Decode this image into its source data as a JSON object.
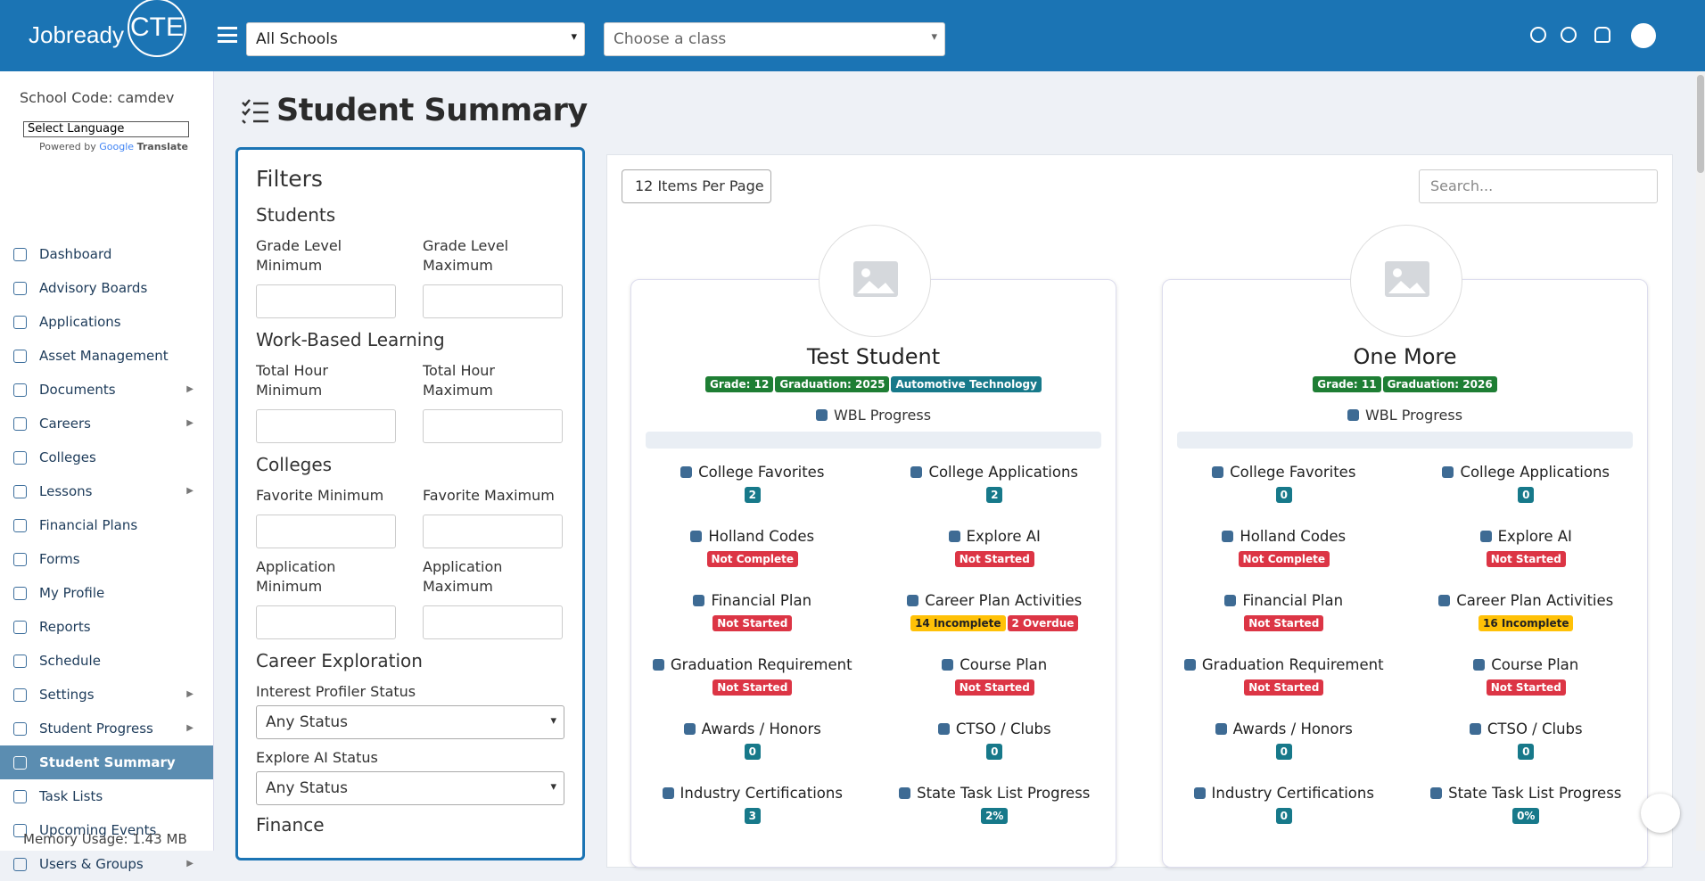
{
  "header": {
    "logo_main": "Jobready",
    "logo_cte": "CTE",
    "school_select": "All Schools",
    "class_select": "Choose a class"
  },
  "sidebar": {
    "school_code": "School Code: camdev",
    "language": "Select Language",
    "powered_by": "Powered by",
    "google": "Google",
    "translate": "Translate",
    "nav": [
      {
        "label": "Dashboard"
      },
      {
        "label": "Advisory Boards"
      },
      {
        "label": "Applications"
      },
      {
        "label": "Asset Management"
      },
      {
        "label": "Documents",
        "submenu": true
      },
      {
        "label": "Careers",
        "submenu": true
      },
      {
        "label": "Colleges"
      },
      {
        "label": "Lessons",
        "submenu": true
      },
      {
        "label": "Financial Plans"
      },
      {
        "label": "Forms"
      },
      {
        "label": "My Profile"
      },
      {
        "label": "Reports"
      },
      {
        "label": "Schedule"
      },
      {
        "label": "Settings",
        "submenu": true
      },
      {
        "label": "Student Progress",
        "submenu": true
      },
      {
        "label": "Student Summary",
        "active": true
      },
      {
        "label": "Task Lists"
      },
      {
        "label": "Upcoming Events"
      },
      {
        "label": "Users & Groups",
        "submenu": true
      }
    ],
    "memory": "Memory Usage: 1.43 MB"
  },
  "page": {
    "title": "Student Summary"
  },
  "filters": {
    "title": "Filters",
    "sections": [
      {
        "title": "Students",
        "fields": [
          {
            "label": "Grade Level Minimum"
          },
          {
            "label": "Grade Level Maximum"
          }
        ]
      },
      {
        "title": "Work-Based Learning",
        "fields": [
          {
            "label": "Total Hour Minimum"
          },
          {
            "label": "Total Hour Maximum"
          }
        ]
      },
      {
        "title": "Colleges",
        "fields": [
          {
            "label": "Favorite Minimum"
          },
          {
            "label": "Favorite Maximum"
          },
          {
            "label": "Application Minimum"
          },
          {
            "label": "Application Maximum"
          }
        ]
      },
      {
        "title": "Career Exploration",
        "fields": [
          {
            "label": "Interest Profiler Status",
            "value": "Any Status"
          },
          {
            "label": "Explore AI Status",
            "value": "Any Status"
          }
        ]
      },
      {
        "title": "Finance"
      }
    ]
  },
  "toolbar": {
    "per_page": "12 Items Per Page",
    "search": "Search..."
  },
  "cards": [
    {
      "name": "Test Student",
      "badges": [
        {
          "text": "Grade: 12",
          "color": "#1e7e34"
        },
        {
          "text": "Graduation: 2025",
          "color": "#1e7e34"
        },
        {
          "text": "Automotive Technology",
          "color": "#17798a"
        }
      ],
      "wbl": "WBL Progress",
      "items": [
        {
          "label": "College Favorites",
          "badges": [
            {
              "text": "2",
              "color": "#17798a"
            }
          ]
        },
        {
          "label": "College Applications",
          "badges": [
            {
              "text": "2",
              "color": "#17798a"
            }
          ]
        },
        {
          "label": "Holland Codes",
          "badges": [
            {
              "text": "Not Complete",
              "color": "#dc3545"
            }
          ]
        },
        {
          "label": "Explore AI",
          "badges": [
            {
              "text": "Not Started",
              "color": "#dc3545"
            }
          ]
        },
        {
          "label": "Financial Plan",
          "badges": [
            {
              "text": "Not Started",
              "color": "#dc3545"
            }
          ]
        },
        {
          "label": "Career Plan Activities",
          "badges": [
            {
              "text": "14 Incomplete",
              "color": "#ffc107"
            },
            {
              "text": "2 Overdue",
              "color": "#dc3545"
            }
          ]
        },
        {
          "label": "Graduation Requirement",
          "badges": [
            {
              "text": "Not Started",
              "color": "#dc3545"
            }
          ]
        },
        {
          "label": "Course Plan",
          "badges": [
            {
              "text": "Not Started",
              "color": "#dc3545"
            }
          ]
        },
        {
          "label": "Awards / Honors",
          "badges": [
            {
              "text": "0",
              "color": "#17798a"
            }
          ]
        },
        {
          "label": "CTSO / Clubs",
          "badges": [
            {
              "text": "0",
              "color": "#17798a"
            }
          ]
        },
        {
          "label": "Industry Certifications",
          "badges": [
            {
              "text": "3",
              "color": "#17798a"
            }
          ]
        },
        {
          "label": "State Task List Progress",
          "badges": [
            {
              "text": "2%",
              "color": "#17798a"
            }
          ]
        }
      ]
    },
    {
      "name": "One More",
      "badges": [
        {
          "text": "Grade: 11",
          "color": "#1e7e34"
        },
        {
          "text": "Graduation: 2026",
          "color": "#1e7e34"
        }
      ],
      "wbl": "WBL Progress",
      "items": [
        {
          "label": "College Favorites",
          "badges": [
            {
              "text": "0",
              "color": "#17798a"
            }
          ]
        },
        {
          "label": "College Applications",
          "badges": [
            {
              "text": "0",
              "color": "#17798a"
            }
          ]
        },
        {
          "label": "Holland Codes",
          "badges": [
            {
              "text": "Not Complete",
              "color": "#dc3545"
            }
          ]
        },
        {
          "label": "Explore AI",
          "badges": [
            {
              "text": "Not Started",
              "color": "#dc3545"
            }
          ]
        },
        {
          "label": "Financial Plan",
          "badges": [
            {
              "text": "Not Started",
              "color": "#dc3545"
            }
          ]
        },
        {
          "label": "Career Plan Activities",
          "badges": [
            {
              "text": "16 Incomplete",
              "color": "#ffc107"
            }
          ]
        },
        {
          "label": "Graduation Requirement",
          "badges": [
            {
              "text": "Not Started",
              "color": "#dc3545"
            }
          ]
        },
        {
          "label": "Course Plan",
          "badges": [
            {
              "text": "Not Started",
              "color": "#dc3545"
            }
          ]
        },
        {
          "label": "Awards / Honors",
          "badges": [
            {
              "text": "0",
              "color": "#17798a"
            }
          ]
        },
        {
          "label": "CTSO / Clubs",
          "badges": [
            {
              "text": "0",
              "color": "#17798a"
            }
          ]
        },
        {
          "label": "Industry Certifications",
          "badges": [
            {
              "text": "0",
              "color": "#17798a"
            }
          ]
        },
        {
          "label": "State Task List Progress",
          "badges": [
            {
              "text": "0%",
              "color": "#17798a"
            }
          ]
        }
      ]
    }
  ]
}
